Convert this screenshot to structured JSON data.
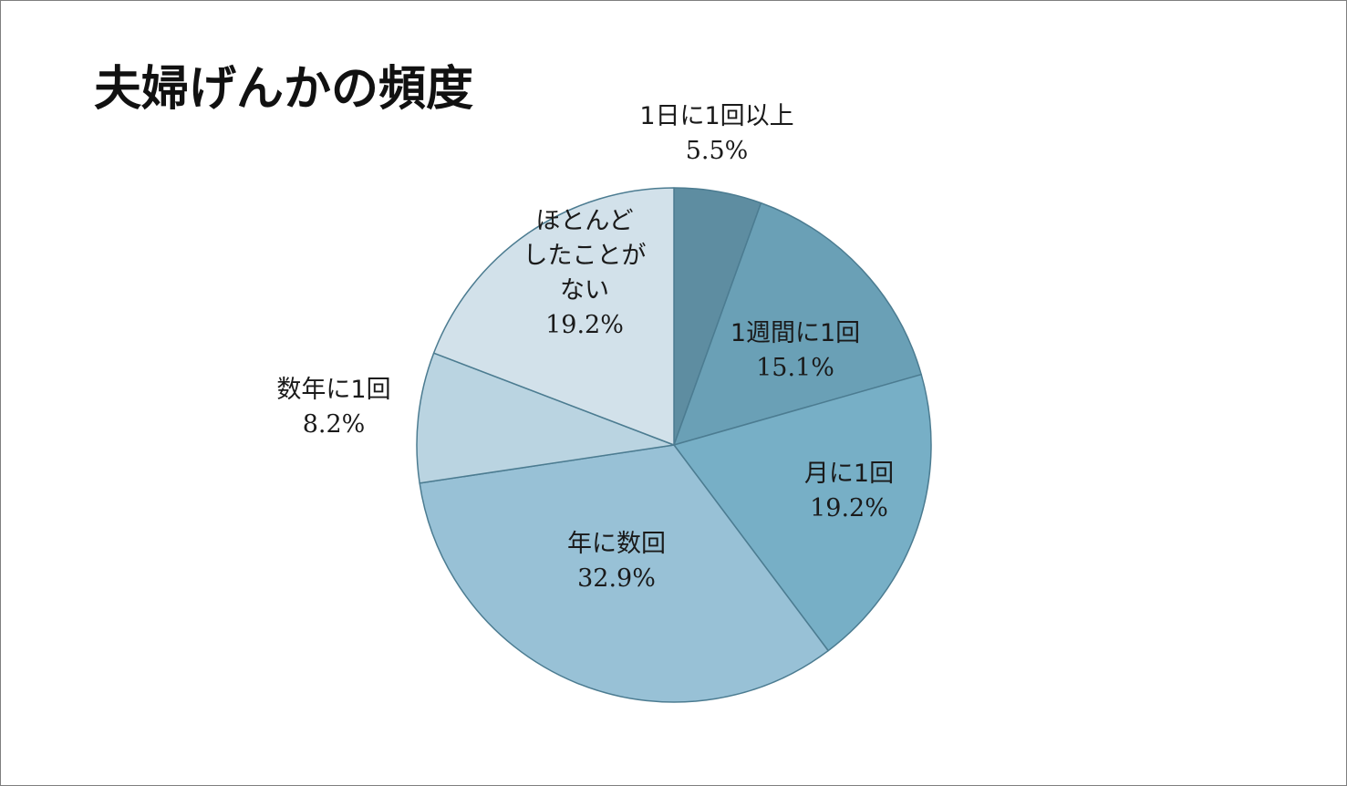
{
  "chart_data": {
    "type": "pie",
    "title": "夫婦げんかの頻度",
    "start_angle_deg": 0,
    "direction": "clockwise",
    "slices": [
      {
        "label_lines": [
          "1日に1回以上"
        ],
        "value": 5.5,
        "value_label": "5.5%",
        "color": "#5e8da1",
        "label_position": "outside"
      },
      {
        "label_lines": [
          "1週間に1回"
        ],
        "value": 15.1,
        "value_label": "15.1%",
        "color": "#6aa0b6",
        "label_position": "inside"
      },
      {
        "label_lines": [
          "月に1回"
        ],
        "value": 19.2,
        "value_label": "19.2%",
        "color": "#77afc6",
        "label_position": "inside"
      },
      {
        "label_lines": [
          "年に数回"
        ],
        "value": 32.9,
        "value_label": "32.9%",
        "color": "#98c1d6",
        "label_position": "inside"
      },
      {
        "label_lines": [
          "数年に1回"
        ],
        "value": 8.2,
        "value_label": "8.2%",
        "color": "#bad4e1",
        "label_position": "outside"
      },
      {
        "label_lines": [
          "ほとんど",
          "したことが",
          "ない"
        ],
        "value": 19.2,
        "value_label": "19.2%",
        "color": "#d2e1ea",
        "label_position": "inside"
      }
    ],
    "border_color": "#4c7c91",
    "legend": "none"
  }
}
